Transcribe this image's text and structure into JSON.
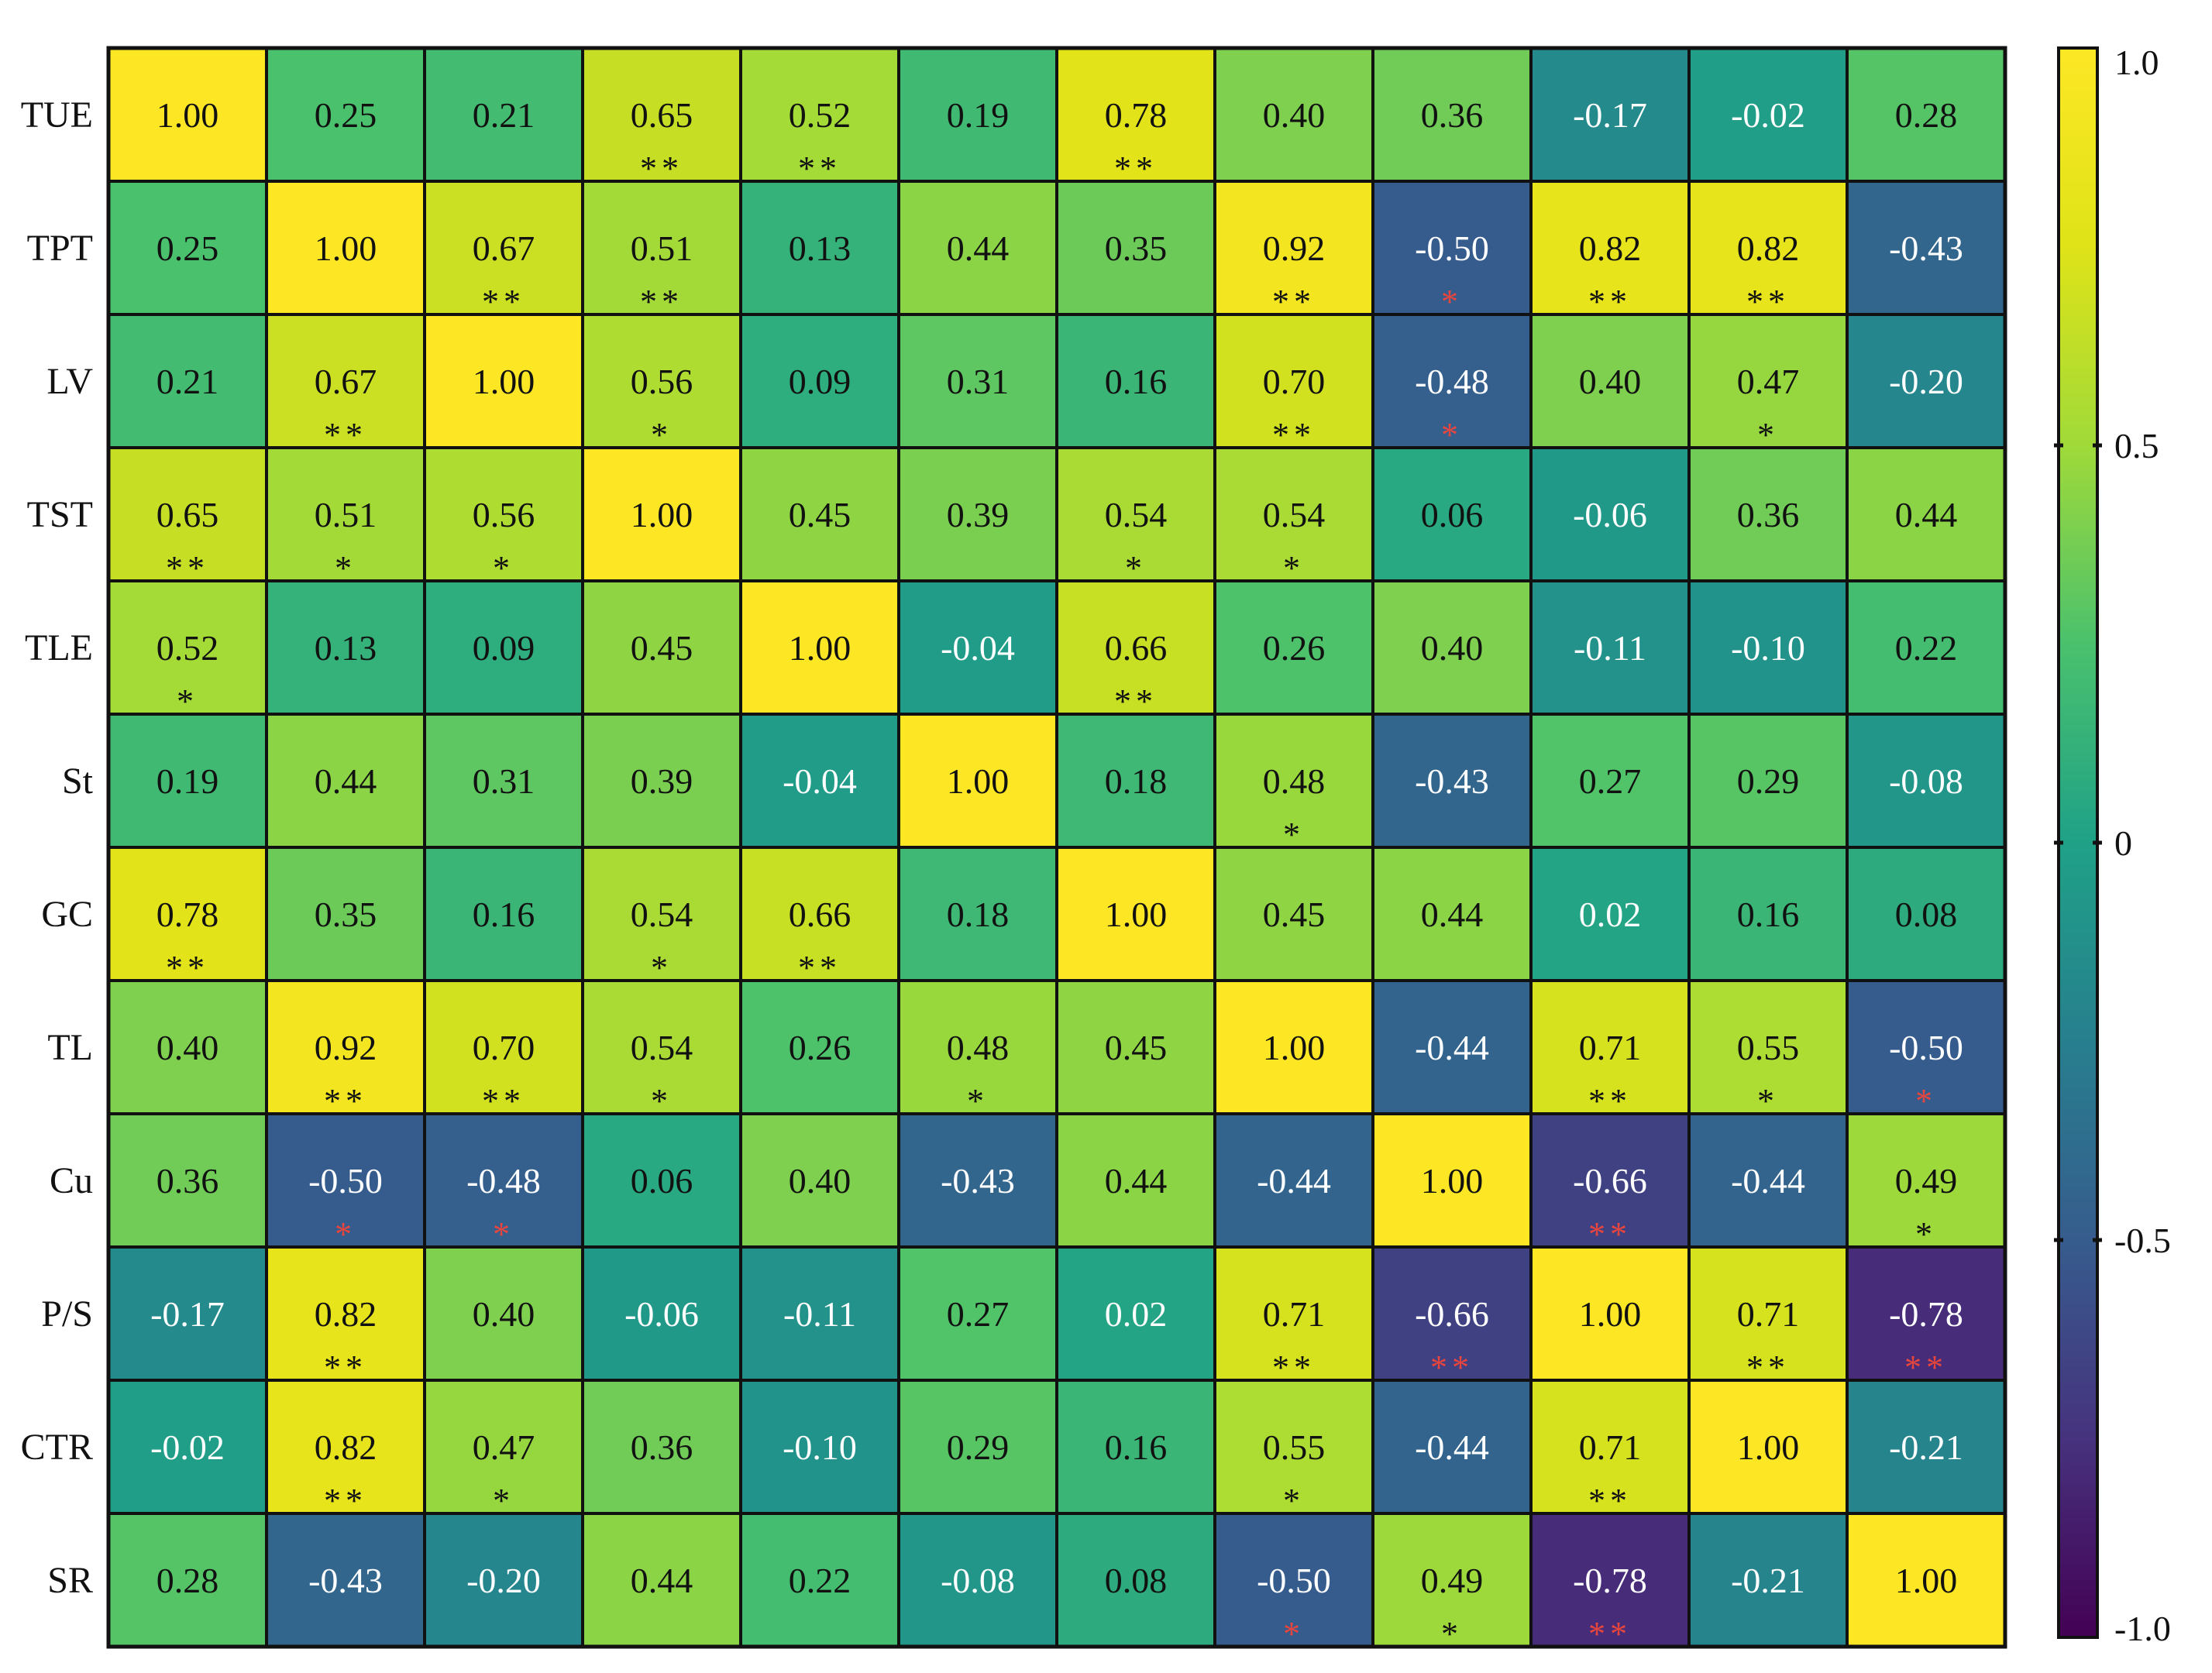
{
  "chart_data": {
    "type": "heatmap",
    "title": "",
    "xlabel": "",
    "ylabel": "",
    "rows": [
      "TUE",
      "TPT",
      "LV",
      "TST",
      "TLE",
      "St",
      "GC",
      "TL",
      "Cu",
      "P/S",
      "CTR",
      "SR"
    ],
    "columns": [
      "",
      "",
      "",
      "",
      "",
      "",
      "",
      "",
      "",
      "",
      "",
      ""
    ],
    "values": [
      [
        1.0,
        0.25,
        0.21,
        0.65,
        0.52,
        0.19,
        0.78,
        0.4,
        0.36,
        -0.17,
        -0.02,
        0.28
      ],
      [
        0.25,
        1.0,
        0.67,
        0.51,
        0.13,
        0.44,
        0.35,
        0.92,
        -0.5,
        0.82,
        0.82,
        -0.43
      ],
      [
        0.21,
        0.67,
        1.0,
        0.56,
        0.09,
        0.31,
        0.16,
        0.7,
        -0.48,
        0.4,
        0.47,
        -0.2
      ],
      [
        0.65,
        0.51,
        0.56,
        1.0,
        0.45,
        0.39,
        0.54,
        0.54,
        0.06,
        -0.06,
        0.36,
        0.44
      ],
      [
        0.52,
        0.13,
        0.09,
        0.45,
        1.0,
        -0.04,
        0.66,
        0.26,
        0.4,
        -0.11,
        -0.1,
        0.22
      ],
      [
        0.19,
        0.44,
        0.31,
        0.39,
        -0.04,
        1.0,
        0.18,
        0.48,
        -0.43,
        0.27,
        0.29,
        -0.08
      ],
      [
        0.78,
        0.35,
        0.16,
        0.54,
        0.66,
        0.18,
        1.0,
        0.45,
        0.44,
        0.02,
        0.16,
        0.08
      ],
      [
        0.4,
        0.92,
        0.7,
        0.54,
        0.26,
        0.48,
        0.45,
        1.0,
        -0.44,
        0.71,
        0.55,
        -0.5
      ],
      [
        0.36,
        -0.5,
        -0.48,
        0.06,
        0.4,
        -0.43,
        0.44,
        -0.44,
        1.0,
        -0.66,
        -0.44,
        0.49
      ],
      [
        -0.17,
        0.82,
        0.4,
        -0.06,
        -0.11,
        0.27,
        0.02,
        0.71,
        -0.66,
        1.0,
        0.71,
        -0.78
      ],
      [
        -0.02,
        0.82,
        0.47,
        0.36,
        -0.1,
        0.29,
        0.16,
        0.55,
        -0.44,
        0.71,
        1.0,
        -0.21
      ],
      [
        0.28,
        -0.43,
        -0.2,
        0.44,
        0.22,
        -0.08,
        0.08,
        -0.5,
        0.49,
        -0.78,
        -0.21,
        1.0
      ]
    ],
    "value_labels": [
      [
        "1.00",
        "0.25",
        "0.21",
        "0.65",
        "0.52",
        "0.19",
        "0.78",
        "0.40",
        "0.36",
        "-0.17",
        "-0.02",
        "0.28"
      ],
      [
        "0.25",
        "1.00",
        "0.67",
        "0.51",
        "0.13",
        "0.44",
        "0.35",
        "0.92",
        "-0.50",
        "0.82",
        "0.82",
        "-0.43"
      ],
      [
        "0.21",
        "0.67",
        "1.00",
        "0.56",
        "0.09",
        "0.31",
        "0.16",
        "0.70",
        "-0.48",
        "0.40",
        "0.47",
        "-0.20"
      ],
      [
        "0.65",
        "0.51",
        "0.56",
        "1.00",
        "0.45",
        "0.39",
        "0.54",
        "0.54",
        "0.06",
        "-0.06",
        "0.36",
        "0.44"
      ],
      [
        "0.52",
        "0.13",
        "0.09",
        "0.45",
        "1.00",
        "-0.04",
        "0.66",
        "0.26",
        "0.40",
        "-0.11",
        "-0.10",
        "0.22"
      ],
      [
        "0.19",
        "0.44",
        "0.31",
        "0.39",
        "-0.04",
        "1.00",
        "0.18",
        "0.48",
        "-0.43",
        "0.27",
        "0.29",
        "-0.08"
      ],
      [
        "0.78",
        "0.35",
        "0.16",
        "0.54",
        "0.66",
        "0.18",
        "1.00",
        "0.45",
        "0.44",
        "0.02",
        "0.16",
        "0.08"
      ],
      [
        "0.40",
        "0.92",
        "0.70",
        "0.54",
        "0.26",
        "0.48",
        "0.45",
        "1.00",
        "-0.44",
        "0.71",
        "0.55",
        "-0.50"
      ],
      [
        "0.36",
        "-0.50",
        "-0.48",
        "0.06",
        "0.40",
        "-0.43",
        "0.44",
        "-0.44",
        "1.00",
        "-0.66",
        "-0.44",
        "0.49"
      ],
      [
        "-0.17",
        "0.82",
        "0.40",
        "-0.06",
        "-0.11",
        "0.27",
        "0.02",
        "0.71",
        "-0.66",
        "1.00",
        "0.71",
        "-0.78"
      ],
      [
        "-0.02",
        "0.82",
        "0.47",
        "0.36",
        "-0.10",
        "0.29",
        "0.16",
        "0.55",
        "-0.44",
        "0.71",
        "1.00",
        "-0.21"
      ],
      [
        "0.28",
        "-0.43",
        "-0.20",
        "0.44",
        "0.22",
        "-0.08",
        "0.08",
        "-0.50",
        "0.49",
        "-0.78",
        "-0.21",
        "1.00"
      ]
    ],
    "significance": [
      [
        "",
        "",
        "",
        "**",
        "**",
        "",
        "**",
        "",
        "",
        "",
        "",
        ""
      ],
      [
        "",
        "",
        "**",
        "**",
        "",
        "",
        "",
        "**",
        "*",
        "**",
        "**",
        ""
      ],
      [
        "",
        "**",
        "",
        "*",
        "",
        "",
        "",
        "**",
        "*",
        "",
        "*",
        ""
      ],
      [
        "**",
        "*",
        "*",
        "",
        "",
        "",
        "*",
        "*",
        "",
        "",
        "",
        ""
      ],
      [
        "*",
        "",
        "",
        "",
        "",
        "",
        "**",
        "",
        "",
        "",
        "",
        ""
      ],
      [
        "",
        "",
        "",
        "",
        "",
        "",
        "",
        "*",
        "",
        "",
        "",
        ""
      ],
      [
        "**",
        "",
        "",
        "*",
        "**",
        "",
        "",
        "",
        "",
        "",
        "",
        ""
      ],
      [
        "",
        "**",
        "**",
        "*",
        "",
        "*",
        "",
        "",
        "",
        "**",
        "*",
        "*"
      ],
      [
        "",
        "*",
        "*",
        "",
        "",
        "",
        "",
        "",
        "",
        "**",
        "",
        "*"
      ],
      [
        "",
        "**",
        "",
        "",
        "",
        "",
        "",
        "**",
        "**",
        "",
        "**",
        "**"
      ],
      [
        "",
        "**",
        "*",
        "",
        "",
        "",
        "",
        "*",
        "",
        "**",
        "",
        ""
      ],
      [
        "",
        "",
        "",
        "",
        "",
        "",
        "",
        "*",
        "*",
        "**",
        "",
        ""
      ]
    ],
    "significance_note_color_negative": "#e8453c",
    "significance_color_positive": "#111111",
    "colorscale": "viridis",
    "color_range": [
      -1.0,
      1.0
    ],
    "colorbar_ticks": [
      1.0,
      0.5,
      0,
      -0.5,
      -1.0
    ],
    "colorbar_tick_labels": [
      "1.0",
      "0.5",
      "0",
      "-0.5",
      "-1.0"
    ],
    "grid": true,
    "legend": "right colorbar"
  }
}
